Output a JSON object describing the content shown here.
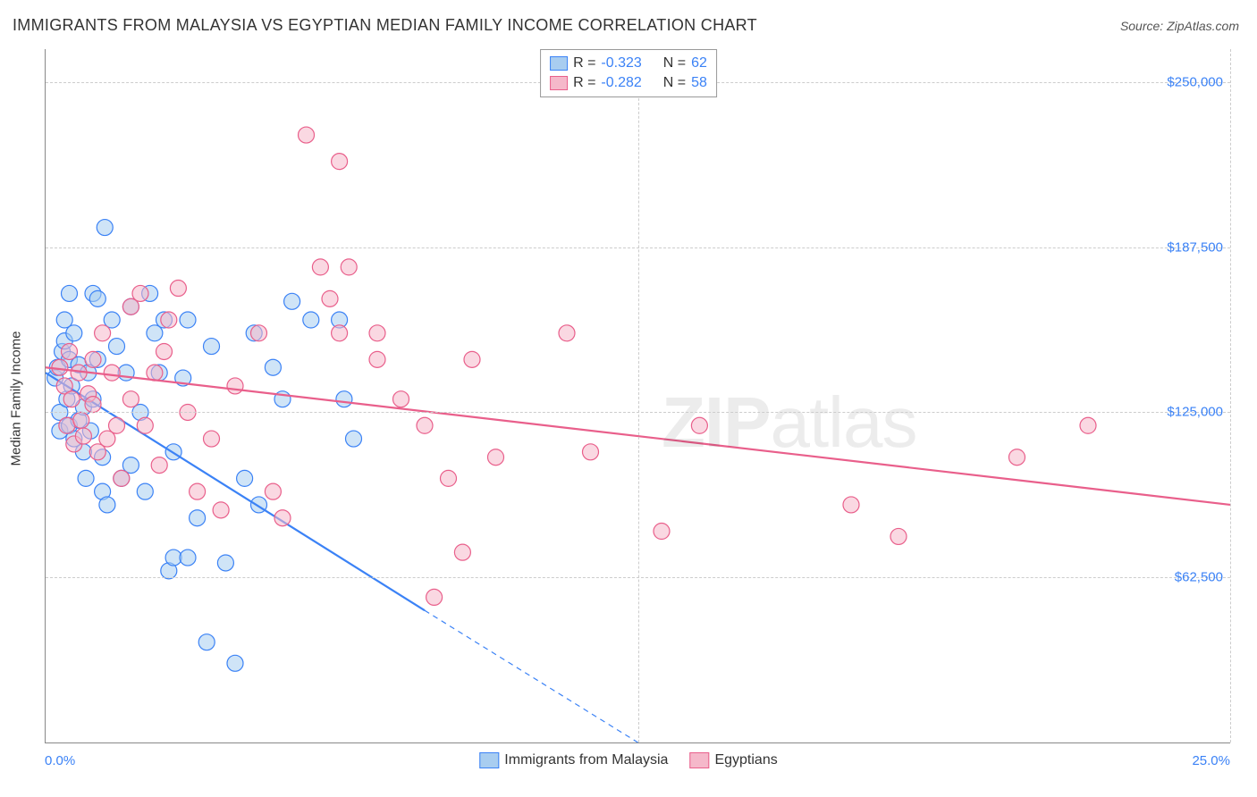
{
  "header": {
    "title": "IMMIGRANTS FROM MALAYSIA VS EGYPTIAN MEDIAN FAMILY INCOME CORRELATION CHART",
    "source_prefix": "Source: ",
    "source_name": "ZipAtlas.com"
  },
  "chart": {
    "type": "scatter",
    "background_color": "#ffffff",
    "grid_color": "#cccccc",
    "axis_color": "#888888",
    "xlim": [
      0,
      25
    ],
    "ylim": [
      0,
      262500
    ],
    "x_ticks": [
      {
        "v": 0,
        "label": "0.0%"
      },
      {
        "v": 25,
        "label": "25.0%"
      }
    ],
    "y_ticks": [
      {
        "v": 62500,
        "label": "$62,500"
      },
      {
        "v": 125000,
        "label": "$125,000"
      },
      {
        "v": 187500,
        "label": "$187,500"
      },
      {
        "v": 250000,
        "label": "$250,000"
      }
    ],
    "y_axis_title": "Median Family Income",
    "x_gridlines": [
      12.5,
      25
    ],
    "marker_radius": 9,
    "marker_stroke_width": 1.2,
    "trend_line_width": 2.2,
    "trend_dash": "6,5",
    "series": [
      {
        "id": "malaysia",
        "label": "Immigrants from Malaysia",
        "fill": "#a8cdf0",
        "stroke": "#3b82f6",
        "fill_opacity": 0.55,
        "R": "-0.323",
        "N": "62",
        "trend": {
          "x1": 0,
          "y1": 140000,
          "x2": 8,
          "y2": 50000,
          "dash_x2": 12.5,
          "dash_y2": 0
        },
        "points": [
          [
            0.2,
            138000
          ],
          [
            0.25,
            142000
          ],
          [
            0.3,
            125000
          ],
          [
            0.3,
            118000
          ],
          [
            0.35,
            148000
          ],
          [
            0.4,
            152000
          ],
          [
            0.4,
            160000
          ],
          [
            0.45,
            130000
          ],
          [
            0.5,
            170000
          ],
          [
            0.5,
            145000
          ],
          [
            0.5,
            120000
          ],
          [
            0.55,
            135000
          ],
          [
            0.6,
            115000
          ],
          [
            0.6,
            155000
          ],
          [
            0.7,
            143000
          ],
          [
            0.7,
            122000
          ],
          [
            0.8,
            127000
          ],
          [
            0.8,
            110000
          ],
          [
            0.85,
            100000
          ],
          [
            0.9,
            140000
          ],
          [
            0.95,
            118000
          ],
          [
            1.0,
            170000
          ],
          [
            1.0,
            130000
          ],
          [
            1.1,
            168000
          ],
          [
            1.1,
            145000
          ],
          [
            1.2,
            95000
          ],
          [
            1.2,
            108000
          ],
          [
            1.25,
            195000
          ],
          [
            1.3,
            90000
          ],
          [
            1.4,
            160000
          ],
          [
            1.5,
            150000
          ],
          [
            1.6,
            100000
          ],
          [
            1.7,
            140000
          ],
          [
            1.8,
            165000
          ],
          [
            1.8,
            105000
          ],
          [
            2.0,
            125000
          ],
          [
            2.1,
            95000
          ],
          [
            2.2,
            170000
          ],
          [
            2.3,
            155000
          ],
          [
            2.4,
            140000
          ],
          [
            2.5,
            160000
          ],
          [
            2.6,
            65000
          ],
          [
            2.7,
            70000
          ],
          [
            2.7,
            110000
          ],
          [
            2.9,
            138000
          ],
          [
            3.0,
            70000
          ],
          [
            3.0,
            160000
          ],
          [
            3.2,
            85000
          ],
          [
            3.4,
            38000
          ],
          [
            3.5,
            150000
          ],
          [
            3.8,
            68000
          ],
          [
            4.0,
            30000
          ],
          [
            4.2,
            100000
          ],
          [
            4.4,
            155000
          ],
          [
            4.5,
            90000
          ],
          [
            4.8,
            142000
          ],
          [
            5.0,
            130000
          ],
          [
            5.2,
            167000
          ],
          [
            5.6,
            160000
          ],
          [
            6.2,
            160000
          ],
          [
            6.3,
            130000
          ],
          [
            6.5,
            115000
          ]
        ]
      },
      {
        "id": "egyptians",
        "label": "Egyptians",
        "fill": "#f5b8ca",
        "stroke": "#e95f8b",
        "fill_opacity": 0.55,
        "R": "-0.282",
        "N": "58",
        "trend": {
          "x1": 0,
          "y1": 142000,
          "x2": 25,
          "y2": 90000
        },
        "points": [
          [
            0.3,
            142000
          ],
          [
            0.4,
            135000
          ],
          [
            0.45,
            120000
          ],
          [
            0.5,
            148000
          ],
          [
            0.55,
            130000
          ],
          [
            0.6,
            113000
          ],
          [
            0.7,
            140000
          ],
          [
            0.75,
            122000
          ],
          [
            0.8,
            116000
          ],
          [
            0.9,
            132000
          ],
          [
            1.0,
            145000
          ],
          [
            1.0,
            128000
          ],
          [
            1.1,
            110000
          ],
          [
            1.2,
            155000
          ],
          [
            1.3,
            115000
          ],
          [
            1.4,
            140000
          ],
          [
            1.5,
            120000
          ],
          [
            1.6,
            100000
          ],
          [
            1.8,
            165000
          ],
          [
            1.8,
            130000
          ],
          [
            2.0,
            170000
          ],
          [
            2.1,
            120000
          ],
          [
            2.3,
            140000
          ],
          [
            2.4,
            105000
          ],
          [
            2.5,
            148000
          ],
          [
            2.6,
            160000
          ],
          [
            2.8,
            172000
          ],
          [
            3.0,
            125000
          ],
          [
            3.2,
            95000
          ],
          [
            3.5,
            115000
          ],
          [
            3.7,
            88000
          ],
          [
            4.0,
            135000
          ],
          [
            4.5,
            155000
          ],
          [
            4.8,
            95000
          ],
          [
            5.0,
            85000
          ],
          [
            5.5,
            230000
          ],
          [
            5.8,
            180000
          ],
          [
            6.0,
            168000
          ],
          [
            6.2,
            155000
          ],
          [
            6.2,
            220000
          ],
          [
            6.4,
            180000
          ],
          [
            7.0,
            145000
          ],
          [
            7.0,
            155000
          ],
          [
            7.5,
            130000
          ],
          [
            8.0,
            120000
          ],
          [
            8.2,
            55000
          ],
          [
            8.5,
            100000
          ],
          [
            8.8,
            72000
          ],
          [
            9.0,
            145000
          ],
          [
            9.5,
            108000
          ],
          [
            11.0,
            155000
          ],
          [
            11.5,
            110000
          ],
          [
            13.0,
            80000
          ],
          [
            13.8,
            120000
          ],
          [
            17.0,
            90000
          ],
          [
            18.0,
            78000
          ],
          [
            20.5,
            108000
          ],
          [
            22.0,
            120000
          ]
        ]
      }
    ]
  },
  "stats_box": {
    "series": [
      0,
      1
    ],
    "R_label": "R = ",
    "N_label": "N = "
  },
  "watermark": {
    "part1": "ZIP",
    "part2": "atlas"
  },
  "label_fontsize": 15,
  "title_fontsize": 18
}
